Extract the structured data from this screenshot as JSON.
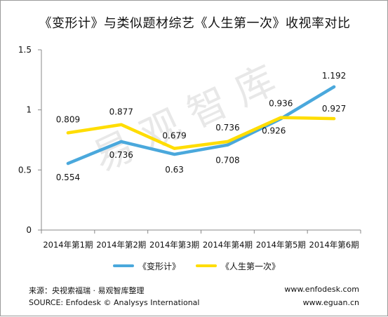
{
  "title": "《变形计》与类似题材综艺《人生第一次》收视率对比",
  "watermark": "易观智库",
  "chart_data": {
    "type": "line",
    "categories": [
      "2014年第1期",
      "2014年第2期",
      "2014年第3期",
      "2014年第4期",
      "2014年第5期",
      "2014年第6期"
    ],
    "series": [
      {
        "name": "《变形计》",
        "color": "#4aa8dc",
        "values": [
          0.554,
          0.736,
          0.63,
          0.708,
          0.926,
          1.192
        ],
        "labels": [
          "0.554",
          "0.736",
          "0.63",
          "0.708",
          "0.926",
          "1.192"
        ]
      },
      {
        "name": "《人生第一次》",
        "color": "#ffdd00",
        "values": [
          0.809,
          0.877,
          0.679,
          0.736,
          0.936,
          0.927
        ],
        "labels": [
          "0.809",
          "0.877",
          "0.679",
          "0.736",
          "0.936",
          "0.927"
        ]
      }
    ],
    "yticks": [
      "0",
      "0.5",
      "1",
      "1.5"
    ],
    "ylim": [
      0,
      1.5
    ],
    "grid": false,
    "legend_position": "bottom"
  },
  "footer": {
    "source_cn": "来源：央视索福瑞 · 易观智库整理",
    "source_en": "SOURCE: Enfodesk © Analysys International",
    "site1": "www.enfodesk.com",
    "site2": "www.eguan.cn"
  }
}
